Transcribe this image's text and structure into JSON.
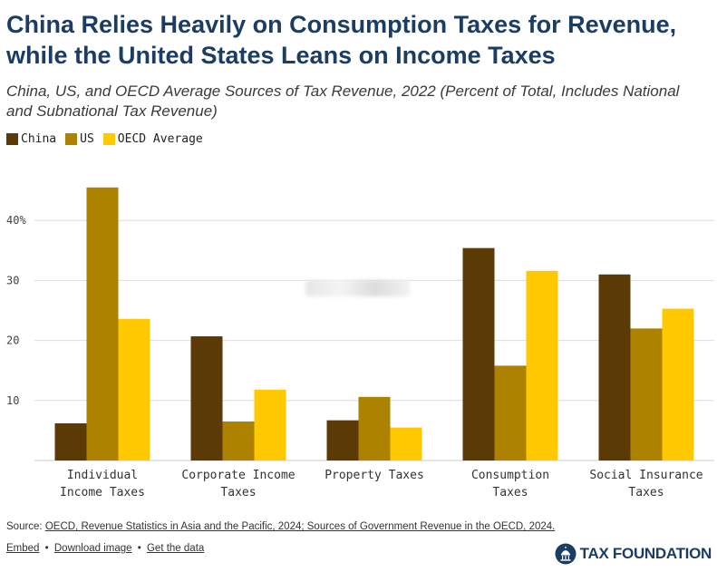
{
  "title": "China Relies Heavily on Consumption Taxes for Revenue, while the United States Leans on Income Taxes",
  "subtitle": "China, US, and OECD Average Sources of Tax Revenue, 2022 (Percent of Total, Includes National and Subnational Tax Revenue)",
  "legend": [
    {
      "label": "China",
      "color": "#5c3a06"
    },
    {
      "label": "US",
      "color": "#ad8200"
    },
    {
      "label": "OECD Average",
      "color": "#ffc800"
    }
  ],
  "chart_data": {
    "type": "bar",
    "categories": [
      [
        "Individual",
        "Income Taxes"
      ],
      [
        "Corporate Income",
        "Taxes"
      ],
      [
        "Property Taxes"
      ],
      [
        "Consumption",
        "Taxes"
      ],
      [
        "Social Insurance",
        "Taxes"
      ]
    ],
    "series": [
      {
        "name": "China",
        "color": "#5c3a06",
        "values": [
          6.2,
          20.7,
          6.7,
          35.4,
          31.0
        ]
      },
      {
        "name": "US",
        "color": "#ad8200",
        "values": [
          45.5,
          6.5,
          10.6,
          15.8,
          22.0
        ]
      },
      {
        "name": "OECD Average",
        "color": "#ffc800",
        "values": [
          23.6,
          11.8,
          5.5,
          31.6,
          25.3
        ]
      }
    ],
    "yticks": [
      {
        "value": 10,
        "label": "10"
      },
      {
        "value": 20,
        "label": "20"
      },
      {
        "value": 30,
        "label": "30"
      },
      {
        "value": 40,
        "label": "40%"
      }
    ],
    "ylim": [
      0,
      50
    ],
    "grid": true,
    "legend_position": "top-left"
  },
  "footer": {
    "source_prefix": "Source: ",
    "source_link": "OECD, Revenue Statistics in Asia and the Pacific, 2024; Sources of Government Revenue in the OECD, 2024.",
    "embed": "Embed",
    "download": "Download image",
    "get_data": "Get the data",
    "separator": "•",
    "logo_text": "TAX FOUNDATION"
  }
}
